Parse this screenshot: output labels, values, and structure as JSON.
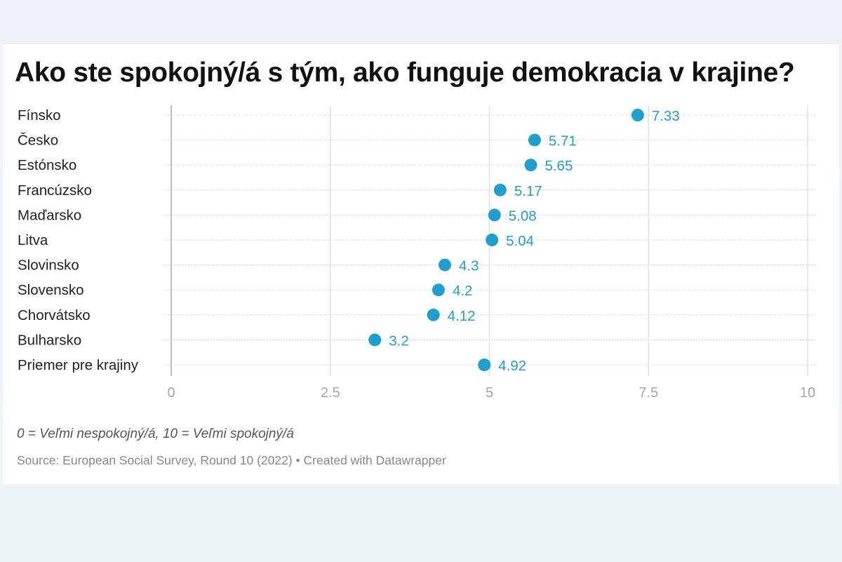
{
  "chart_data": {
    "type": "scatter",
    "title": "Ako ste spokojný/á s tým, ako funguje demokracia v krajine?",
    "categories": [
      "Fínsko",
      "Česko",
      "Estónsko",
      "Francúzsko",
      "Maďarsko",
      "Litva",
      "Slovinsko",
      "Slovensko",
      "Chorvátsko",
      "Bulharsko",
      "Priemer pre krajiny"
    ],
    "values": [
      7.33,
      5.71,
      5.65,
      5.17,
      5.08,
      5.04,
      4.3,
      4.2,
      4.12,
      3.2,
      4.92
    ],
    "value_labels": [
      "7.33",
      "5.71",
      "5.65",
      "5.17",
      "5.08",
      "5.04",
      "4.3",
      "4.2",
      "4.12",
      "3.2",
      "4.92"
    ],
    "xlim": [
      0,
      10
    ],
    "xticks": [
      0,
      2.5,
      5,
      7.5,
      10
    ],
    "xtick_labels": [
      "0",
      "2.5",
      "5",
      "7.5",
      "10"
    ],
    "grid": true,
    "xlabel": "",
    "ylabel": "",
    "colors": {
      "dot": "#1d9fd0",
      "label": "#1d9fd0"
    }
  },
  "notes": "0 = Veľmi nespokojný/á, 10 = Veľmi spokojný/á",
  "source": "Source: European Social Survey, Round 10 (2022) • Created with Datawrapper"
}
